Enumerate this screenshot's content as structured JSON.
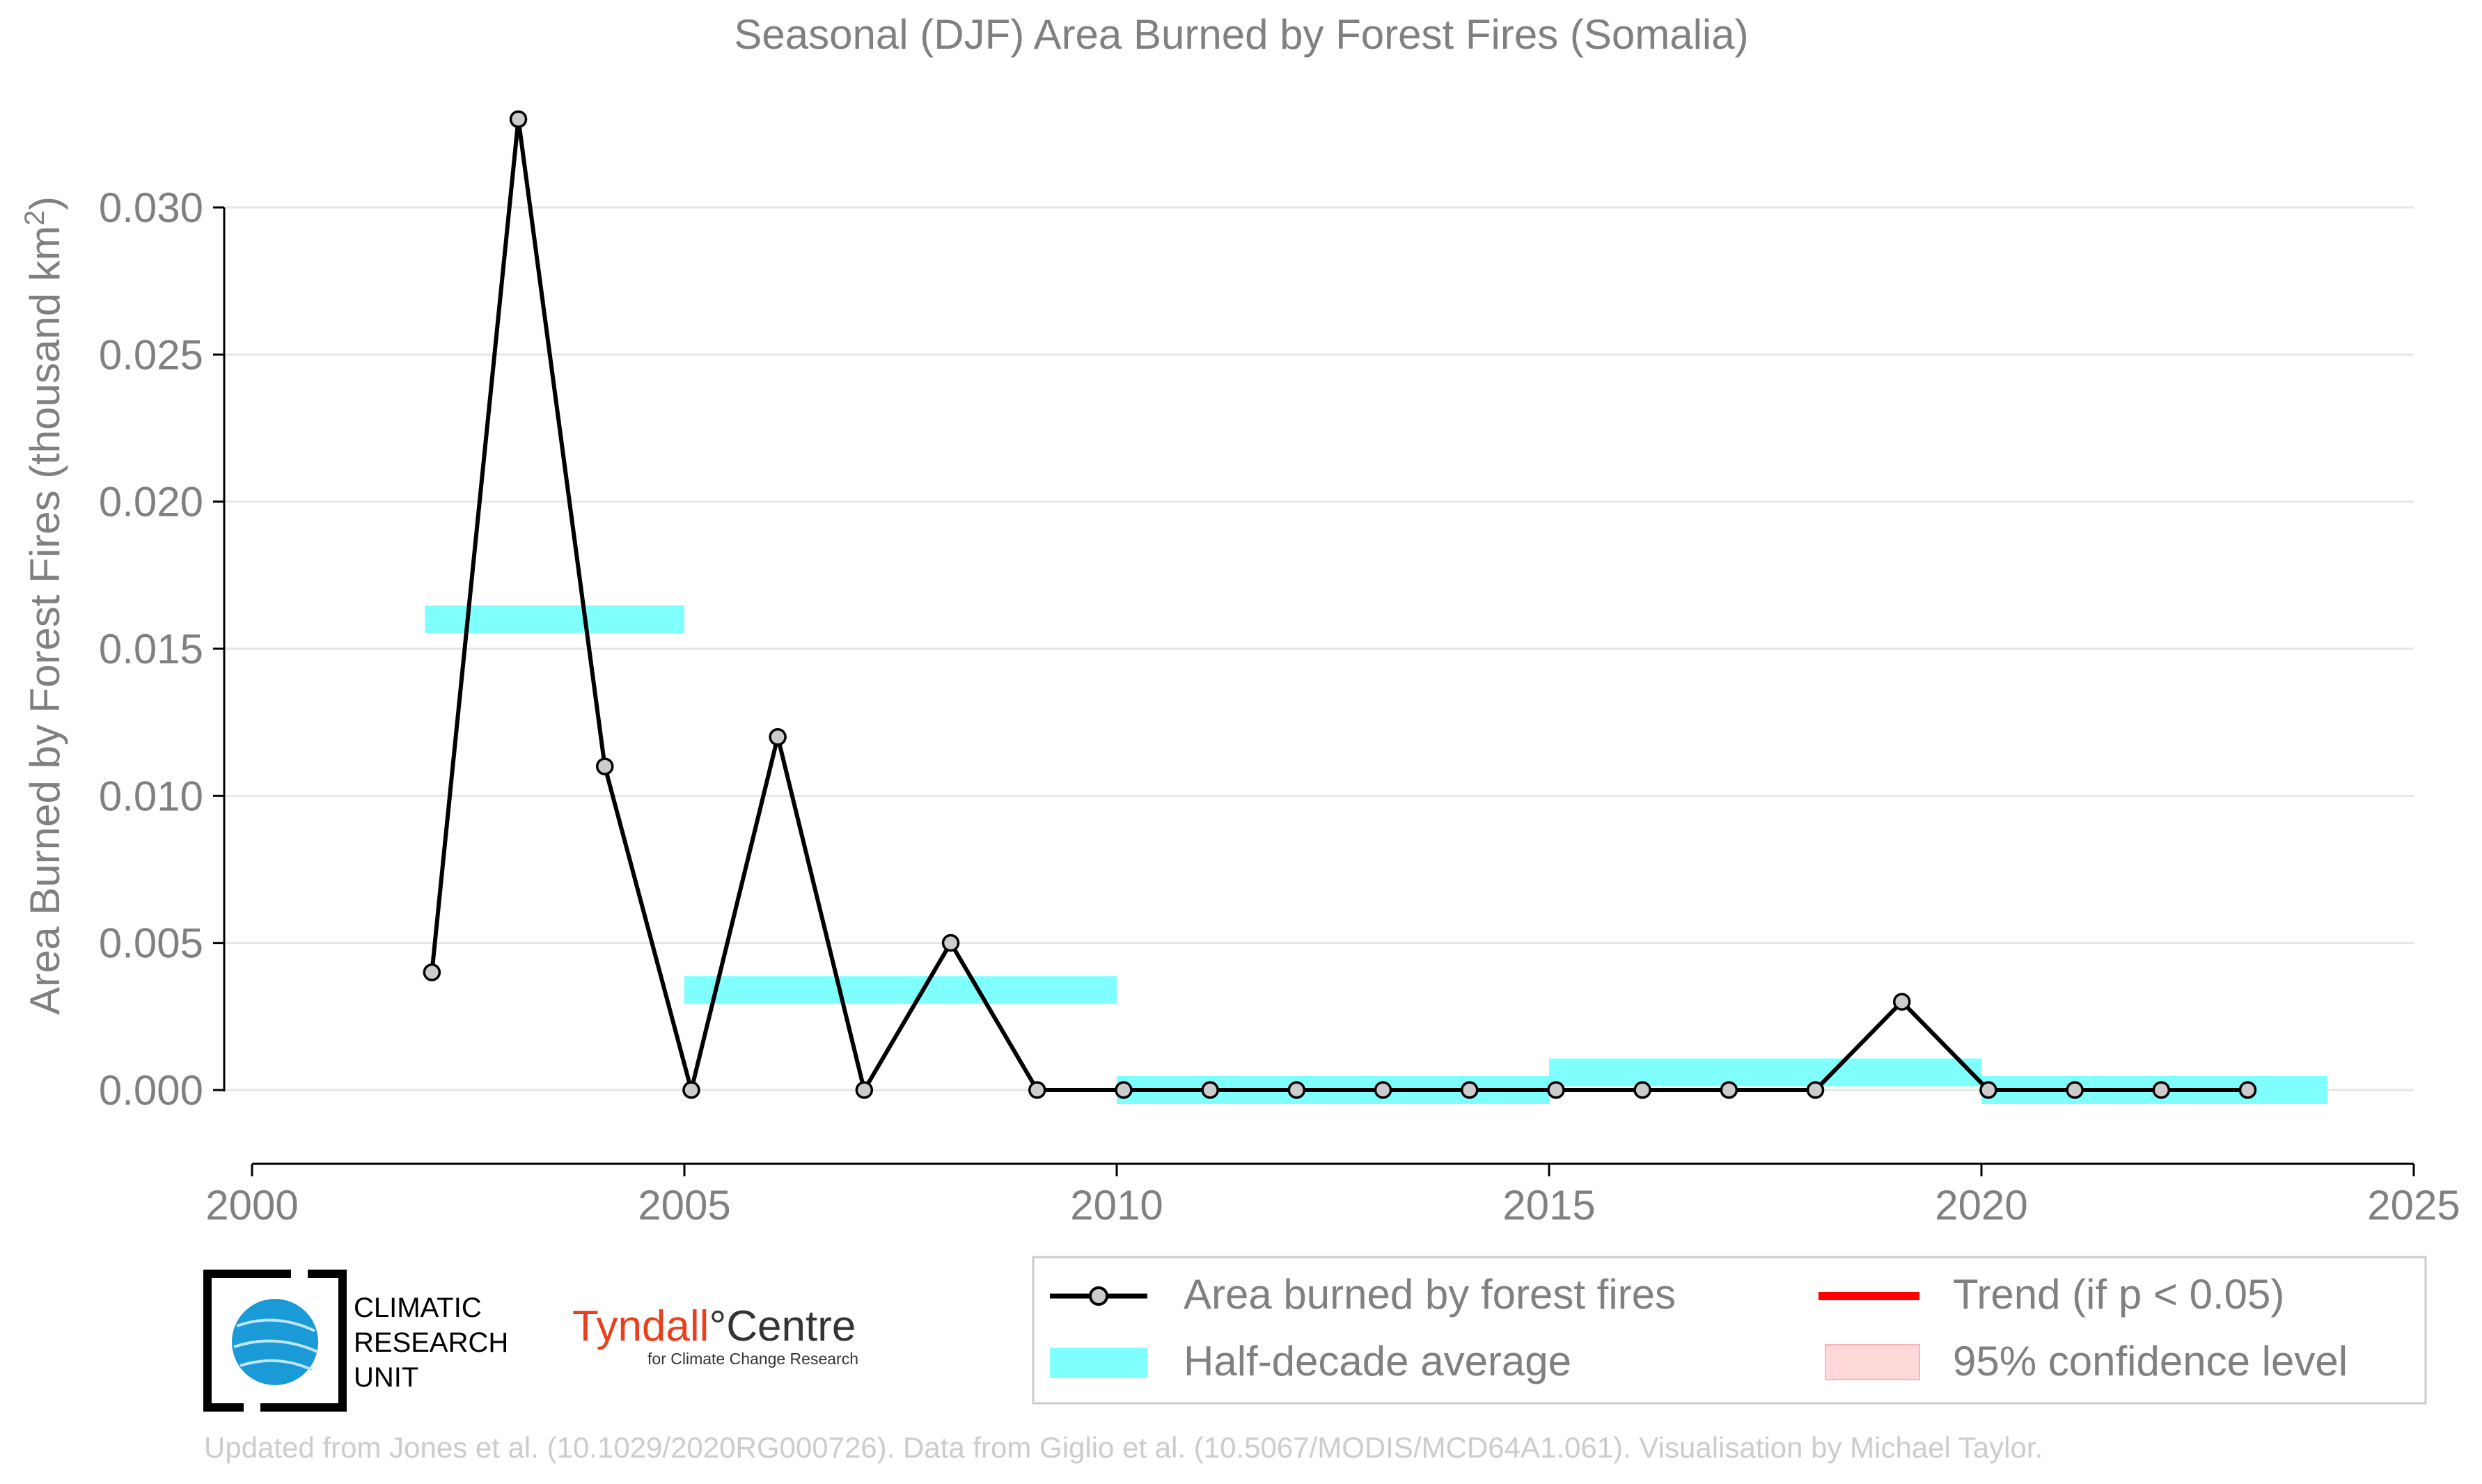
{
  "chart_data": {
    "type": "line",
    "title": "Seasonal (DJF) Area Burned by Forest Fires (Somalia)",
    "xlabel": "",
    "ylabel": "Area Burned by Forest Fires (thousand km",
    "ylabel_superscript": "2",
    "ylabel_suffix": ")",
    "xlim": [
      2000,
      2025
    ],
    "ylim": [
      -0.0025,
      0.0335
    ],
    "x_ticks": [
      2000,
      2005,
      2010,
      2015,
      2020,
      2025
    ],
    "y_ticks": [
      0.0,
      0.005,
      0.01,
      0.015,
      0.02,
      0.025,
      0.03
    ],
    "y_tick_labels": [
      "0.000",
      "0.005",
      "0.010",
      "0.015",
      "0.020",
      "0.025",
      "0.030"
    ],
    "grid": "horizontal",
    "legend_position": "bottom-right",
    "series": [
      {
        "name": "Area burned by forest fires",
        "color": "#000000",
        "marker_fill": "#cccccc",
        "x": [
          2002,
          2003,
          2004,
          2005,
          2006,
          2007,
          2008,
          2009,
          2010,
          2011,
          2012,
          2013,
          2014,
          2015,
          2016,
          2017,
          2018,
          2019,
          2020,
          2021,
          2022,
          2023
        ],
        "y": [
          0.004,
          0.033,
          0.011,
          0.0,
          0.012,
          0.0,
          0.005,
          0.0,
          0.0,
          0.0,
          0.0,
          0.0,
          0.0,
          0.0,
          0.0,
          0.0,
          0.0,
          0.003,
          0.0,
          0.0,
          0.0,
          0.0
        ]
      }
    ],
    "half_decade_average": {
      "name": "Half-decade average",
      "color": "#80ffff",
      "segments": [
        {
          "x_start": 2002,
          "x_end": 2005,
          "value": 0.016
        },
        {
          "x_start": 2005,
          "x_end": 2010,
          "value": 0.0034
        },
        {
          "x_start": 2010,
          "x_end": 2015,
          "value": 0.0
        },
        {
          "x_start": 2015,
          "x_end": 2020,
          "value": 0.0006
        },
        {
          "x_start": 2020,
          "x_end": 2024,
          "value": 0.0
        }
      ]
    },
    "legend": [
      {
        "label": "Area burned by forest fires",
        "kind": "line-marker",
        "color": "#000000"
      },
      {
        "label": "Trend (if p < 0.05)",
        "kind": "line",
        "color": "#ff0000"
      },
      {
        "label": "Half-decade average",
        "kind": "band",
        "color": "#80ffff"
      },
      {
        "label": "95% confidence level",
        "kind": "band",
        "color": "#ffd9d9"
      }
    ]
  },
  "logos": {
    "cru_line1": "CLIMATIC",
    "cru_line2": "RESEARCH",
    "cru_line3": "UNIT",
    "tyndall_name_a": "Tyndall",
    "tyndall_name_b": "°Centre",
    "tyndall_sub": "for Climate Change Research"
  },
  "footer": {
    "credit": "Updated from Jones et al. (10.1029/2020RG000726). Data from Giglio et al. (10.5067/MODIS/MCD64A1.061). Visualisation by Michael Taylor."
  },
  "colors": {
    "text_grey": "#808080",
    "axis": "#000000",
    "grid": "#e6e6e6",
    "footer_grey": "#cccccc",
    "tyndall_red": "#e8401c",
    "cru_blue": "#1a9ad6"
  }
}
